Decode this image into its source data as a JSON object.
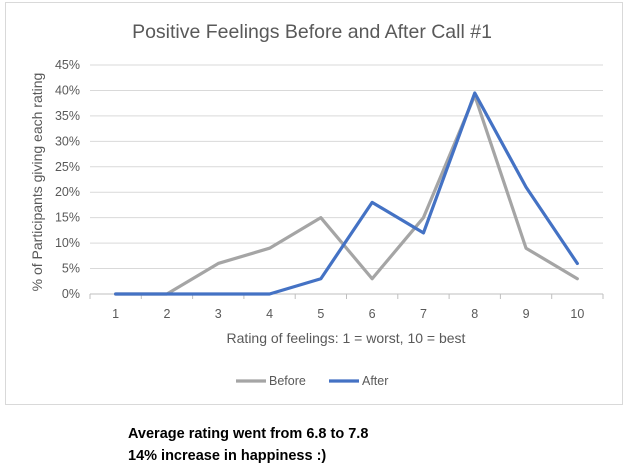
{
  "chart_data": {
    "type": "line",
    "title": "Positive Feelings Before and After Call #1",
    "xlabel": "Rating of feelings: 1 = worst, 10 = best",
    "ylabel": "% of Participants giving each rating",
    "categories": [
      "1",
      "2",
      "3",
      "4",
      "5",
      "6",
      "7",
      "8",
      "9",
      "10"
    ],
    "yticks": [
      "0%",
      "5%",
      "10%",
      "15%",
      "20%",
      "25%",
      "30%",
      "35%",
      "40%",
      "45%"
    ],
    "ylim": [
      0,
      45
    ],
    "grid": true,
    "legend": "bottom",
    "series": [
      {
        "name": "Before",
        "color": "#a5a5a5",
        "values": [
          0,
          0,
          6,
          9,
          15,
          3,
          15,
          39,
          9,
          3
        ]
      },
      {
        "name": "After",
        "color": "#4472c4",
        "values": [
          0,
          0,
          0,
          0,
          3,
          18,
          12,
          39.5,
          21,
          6
        ]
      }
    ]
  },
  "notes": {
    "line1": "Average rating went from 6.8 to 7.8",
    "line2": "14% increase in happiness :)"
  }
}
